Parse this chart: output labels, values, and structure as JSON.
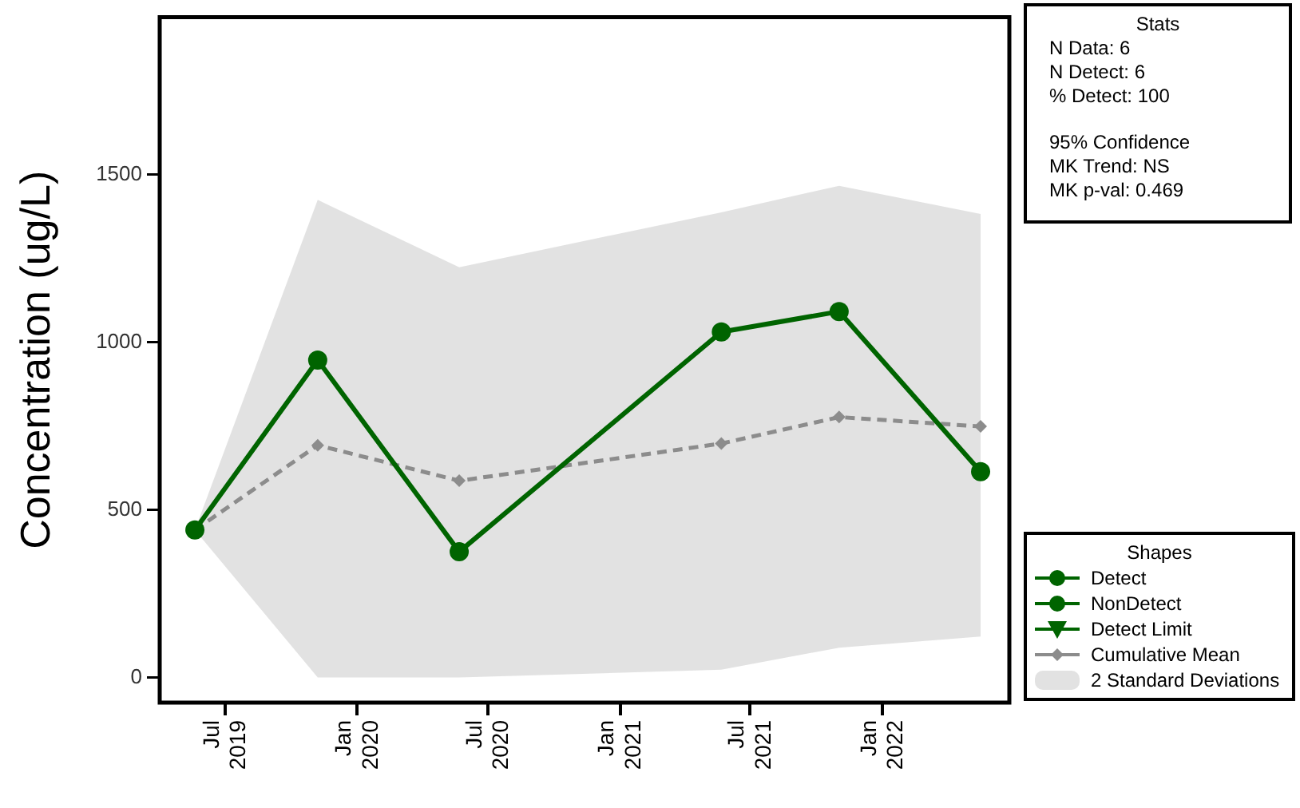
{
  "chart_data": {
    "type": "line",
    "ylabel": "Concentration (ug/L)",
    "legend_title": "Shapes",
    "legend": "right",
    "x": [
      "2019-05-20",
      "2019-11-07",
      "2020-05-22",
      "2021-05-22",
      "2021-11-02",
      "2022-05-18"
    ],
    "xlim": [
      "2019-04-01",
      "2022-06-27"
    ],
    "xticks": [
      {
        "value": "2019-07",
        "label": "Jul 2019"
      },
      {
        "value": "2020-01",
        "label": "Jan 2020"
      },
      {
        "value": "2020-07",
        "label": "Jul 2020"
      },
      {
        "value": "2021-01",
        "label": "Jan 2021"
      },
      {
        "value": "2021-07",
        "label": "Jul 2021"
      },
      {
        "value": "2022-01",
        "label": "Jan 2022"
      }
    ],
    "ylim": [
      -75,
      1970
    ],
    "yticks": [
      0,
      500,
      1000,
      1500
    ],
    "series": [
      {
        "name": "Detect",
        "type": "line",
        "color": "#006400",
        "marker": "circle",
        "line_style": "solid",
        "values": [
          440,
          947,
          375,
          1031,
          1092,
          614
        ]
      },
      {
        "name": "NonDetect",
        "type": "line",
        "color": "#006400",
        "marker": "circle",
        "values": [
          null,
          null,
          null,
          null,
          null,
          null
        ]
      },
      {
        "name": "Detect Limit",
        "type": "line",
        "color": "#006400",
        "marker": "triangle",
        "values": [
          null,
          null,
          null,
          null,
          null,
          null
        ]
      },
      {
        "name": "Cumulative Mean",
        "type": "line",
        "color": "#8c8c8c",
        "marker": "diamond",
        "line_style": "dashed",
        "values": [
          440,
          693,
          587,
          698,
          777,
          749
        ],
        "lower": [
          440,
          0,
          0,
          23,
          89,
          122
        ],
        "upper": [
          440,
          1425,
          1224,
          1388,
          1467,
          1383
        ]
      }
    ],
    "annotations": [
      "Stats",
      "N Data: 6",
      "N Detect: 6",
      "% Detect: 100",
      "95% Confidence",
      "MK Trend: NS",
      "MK p-val: 0.469",
      "2 Standard Deviations"
    ]
  }
}
